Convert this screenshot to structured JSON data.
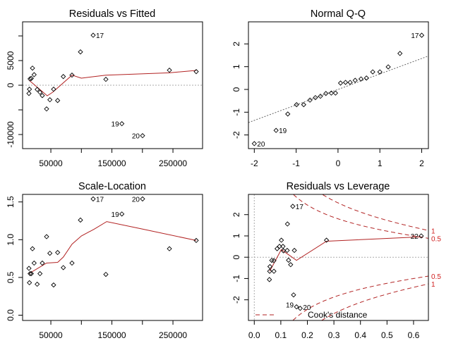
{
  "chart_data": [
    {
      "type": "scatter",
      "title": "Residuals vs Fitted",
      "xlim": [
        3700,
        298500
      ],
      "ylim": [
        -12860,
        12860
      ],
      "xticks": [
        50000,
        100000,
        150000,
        200000,
        250000
      ],
      "xtick_labels": [
        "50000",
        "",
        "150000",
        "",
        "250000"
      ],
      "yticks": [
        -10000,
        -5000,
        0,
        5000,
        10000
      ],
      "ytick_labels": [
        "-10000",
        "",
        "0",
        "5000",
        ""
      ],
      "hline": 0,
      "vline": null,
      "smooth_color": "#b22222",
      "points": [
        {
          "x": 14100,
          "y": -1670
        },
        {
          "x": 14900,
          "y": -810
        },
        {
          "x": 16000,
          "y": 1290
        },
        {
          "x": 18000,
          "y": 1400
        },
        {
          "x": 19900,
          "y": 3470
        },
        {
          "x": 22600,
          "y": 2140
        },
        {
          "x": 27600,
          "y": -860
        },
        {
          "x": 32200,
          "y": -1430
        },
        {
          "x": 36000,
          "y": -2100
        },
        {
          "x": 43000,
          "y": -4810
        },
        {
          "x": 48400,
          "y": -2950
        },
        {
          "x": 54500,
          "y": -810
        },
        {
          "x": 61100,
          "y": -3100
        },
        {
          "x": 70400,
          "y": 1760
        },
        {
          "x": 84600,
          "y": 2050
        },
        {
          "x": 98500,
          "y": 6760
        },
        {
          "x": 119300,
          "y": 10140,
          "label": "17",
          "label_side": "right"
        },
        {
          "x": 140100,
          "y": 1190
        },
        {
          "x": 166300,
          "y": -7810,
          "label": "19",
          "label_side": "left"
        },
        {
          "x": 200200,
          "y": -10240,
          "label": "20",
          "label_side": "left"
        },
        {
          "x": 244200,
          "y": 3050
        },
        {
          "x": 288100,
          "y": 2760
        }
      ],
      "smooth": [
        [
          14100,
          1050
        ],
        [
          44000,
          -2140
        ],
        [
          53000,
          -1430
        ],
        [
          84600,
          2050
        ],
        [
          100000,
          1430
        ],
        [
          140000,
          2050
        ],
        [
          244000,
          2520
        ],
        [
          288000,
          3000
        ]
      ]
    },
    {
      "type": "scatter",
      "title": "Normal Q-Q",
      "xlim": [
        -2.14,
        2.16
      ],
      "ylim": [
        -2.6,
        2.97
      ],
      "xticks": [
        -2,
        -1,
        0,
        1,
        2
      ],
      "xtick_labels": [
        "-2",
        "-1",
        "0",
        "1",
        "2"
      ],
      "yticks": [
        -2,
        -1,
        0,
        1,
        2
      ],
      "ytick_labels": [
        "-2",
        "-1",
        "0",
        "1",
        "2"
      ],
      "hline": null,
      "vline": null,
      "reference_line": {
        "slope": 0.68,
        "intercept": 0.0
      },
      "points": [
        {
          "x": -2.0,
          "y": -2.38,
          "label": "20",
          "label_side": "right"
        },
        {
          "x": -1.48,
          "y": -1.8,
          "label": "19",
          "label_side": "right"
        },
        {
          "x": -1.2,
          "y": -1.08
        },
        {
          "x": -0.99,
          "y": -0.67
        },
        {
          "x": -0.82,
          "y": -0.67
        },
        {
          "x": -0.67,
          "y": -0.47
        },
        {
          "x": -0.54,
          "y": -0.36
        },
        {
          "x": -0.42,
          "y": -0.3
        },
        {
          "x": -0.29,
          "y": -0.18
        },
        {
          "x": -0.16,
          "y": -0.16
        },
        {
          "x": -0.06,
          "y": -0.16
        },
        {
          "x": 0.06,
          "y": 0.28
        },
        {
          "x": 0.18,
          "y": 0.31
        },
        {
          "x": 0.29,
          "y": 0.31
        },
        {
          "x": 0.41,
          "y": 0.4
        },
        {
          "x": 0.55,
          "y": 0.46
        },
        {
          "x": 0.68,
          "y": 0.5
        },
        {
          "x": 0.83,
          "y": 0.77
        },
        {
          "x": 1.0,
          "y": 0.77
        },
        {
          "x": 1.2,
          "y": 0.99
        },
        {
          "x": 1.48,
          "y": 1.58
        },
        {
          "x": 2.0,
          "y": 2.38,
          "label": "17",
          "label_side": "left"
        }
      ]
    },
    {
      "type": "scatter",
      "title": "Scale-Location",
      "xlim": [
        3700,
        298500
      ],
      "ylim": [
        -0.07,
        1.6
      ],
      "xticks": [
        50000,
        100000,
        150000,
        200000,
        250000
      ],
      "xtick_labels": [
        "50000",
        "",
        "150000",
        "",
        "250000"
      ],
      "yticks": [
        0,
        0.5,
        1,
        1.5
      ],
      "ytick_labels": [
        "0.0",
        "0.5",
        "1.0",
        "1.5"
      ],
      "hline": null,
      "vline": null,
      "smooth_color": "#b22222",
      "points": [
        {
          "x": 14100,
          "y": 0.62
        },
        {
          "x": 14900,
          "y": 0.43
        },
        {
          "x": 16000,
          "y": 0.55
        },
        {
          "x": 18000,
          "y": 0.55
        },
        {
          "x": 19900,
          "y": 0.88
        },
        {
          "x": 22600,
          "y": 0.69
        },
        {
          "x": 27600,
          "y": 0.41
        },
        {
          "x": 32200,
          "y": 0.55
        },
        {
          "x": 36000,
          "y": 0.69
        },
        {
          "x": 43000,
          "y": 1.04
        },
        {
          "x": 48400,
          "y": 0.82
        },
        {
          "x": 54500,
          "y": 0.4
        },
        {
          "x": 61100,
          "y": 0.83
        },
        {
          "x": 70400,
          "y": 0.63
        },
        {
          "x": 84600,
          "y": 0.69
        },
        {
          "x": 98500,
          "y": 1.26
        },
        {
          "x": 119300,
          "y": 1.54,
          "label": "17",
          "label_side": "right"
        },
        {
          "x": 140100,
          "y": 0.54
        },
        {
          "x": 166300,
          "y": 1.34,
          "label": "19",
          "label_side": "left"
        },
        {
          "x": 200200,
          "y": 1.54,
          "label": "20",
          "label_side": "left"
        },
        {
          "x": 244200,
          "y": 0.88
        },
        {
          "x": 288100,
          "y": 0.99
        }
      ],
      "smooth": [
        [
          14100,
          0.55
        ],
        [
          43000,
          0.69
        ],
        [
          61100,
          0.7
        ],
        [
          70400,
          0.77
        ],
        [
          84600,
          0.94
        ],
        [
          100000,
          1.05
        ],
        [
          121000,
          1.14
        ],
        [
          141500,
          1.24
        ],
        [
          200200,
          1.14
        ],
        [
          288100,
          0.99
        ]
      ]
    },
    {
      "type": "scatter",
      "title": "Residuals vs Leverage",
      "xlim": [
        -0.022,
        0.656
      ],
      "ylim": [
        -2.97,
        2.95
      ],
      "xticks": [
        0,
        0.1,
        0.2,
        0.3,
        0.4,
        0.5,
        0.6
      ],
      "xtick_labels": [
        "0.0",
        "0.1",
        "0.2",
        "0.3",
        "0.4",
        "0.5",
        "0.6"
      ],
      "yticks": [
        -2,
        -1,
        0,
        1,
        2
      ],
      "ytick_labels": [
        "-2",
        "-1",
        "0",
        "1",
        "2"
      ],
      "hline": 0,
      "vline": 0,
      "smooth_color": "#b22222",
      "cooks_levels": [
        0.5,
        1
      ],
      "cooks_labels": [
        "0.5",
        "1"
      ],
      "legend": {
        "label": "Cook's distance",
        "position": "bottom-left"
      },
      "points": [
        {
          "x": 0.057,
          "y": -1.05
        },
        {
          "x": 0.058,
          "y": -0.66
        },
        {
          "x": 0.059,
          "y": -0.44
        },
        {
          "x": 0.066,
          "y": -0.15
        },
        {
          "x": 0.074,
          "y": -0.16
        },
        {
          "x": 0.074,
          "y": -0.66
        },
        {
          "x": 0.086,
          "y": 0.4
        },
        {
          "x": 0.095,
          "y": 0.51
        },
        {
          "x": 0.102,
          "y": 0.8
        },
        {
          "x": 0.108,
          "y": 0.51
        },
        {
          "x": 0.11,
          "y": 0.3
        },
        {
          "x": 0.124,
          "y": 0.32
        },
        {
          "x": 0.125,
          "y": 1.56
        },
        {
          "x": 0.129,
          "y": -0.14
        },
        {
          "x": 0.137,
          "y": -0.35
        },
        {
          "x": 0.145,
          "y": 2.39,
          "label": "17",
          "label_side": "right"
        },
        {
          "x": 0.151,
          "y": 0.32
        },
        {
          "x": 0.148,
          "y": -1.77
        },
        {
          "x": 0.159,
          "y": -2.33,
          "label": "19",
          "label_side": "right"
        },
        {
          "x": 0.173,
          "y": -2.4,
          "label": "20",
          "label_side": "right"
        },
        {
          "x": 0.272,
          "y": 0.8
        },
        {
          "x": 0.629,
          "y": 1.0,
          "label": "22",
          "label_side": "left"
        }
      ],
      "smooth": [
        [
          0.058,
          -0.66
        ],
        [
          0.102,
          0.36
        ],
        [
          0.159,
          -0.15
        ],
        [
          0.272,
          0.75
        ],
        [
          0.629,
          0.96
        ]
      ]
    }
  ]
}
